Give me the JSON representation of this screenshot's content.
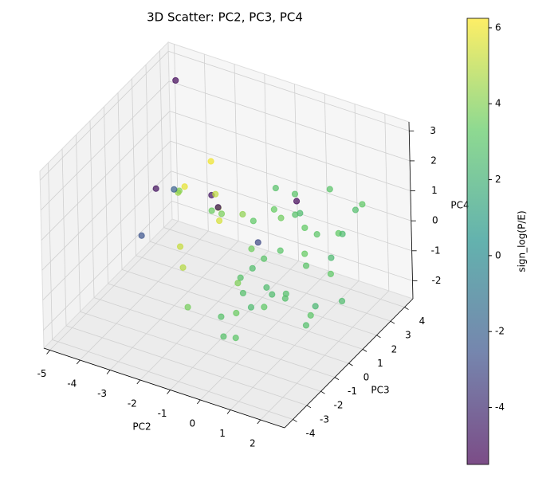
{
  "chart_data": {
    "type": "scatter3d",
    "title": "3D Scatter: PC2, PC3, PC4",
    "xlabel": "PC2",
    "ylabel": "PC3",
    "zlabel": "PC4",
    "colorbar_label": "sign_log(P/E)",
    "colormap": "viridis",
    "alpha": 0.7,
    "xlim": [
      -5.2,
      2.8
    ],
    "ylim": [
      -4.6,
      4.6
    ],
    "zlim": [
      -2.6,
      3.3
    ],
    "xticks": [
      -5,
      -4,
      -3,
      -2,
      -1,
      0,
      1,
      2
    ],
    "yticks": [
      -4,
      -3,
      -2,
      -1,
      0,
      1,
      2,
      3,
      4
    ],
    "zticks": [
      -2,
      -1,
      0,
      1,
      2,
      3
    ],
    "clim": [
      -5.5,
      6.25
    ],
    "cticks": [
      -4,
      -2,
      0,
      2,
      4,
      6
    ],
    "x": [
      0.5,
      1.2,
      -0.3,
      0.9,
      1.8,
      0.1,
      -0.8,
      1.5,
      0.7,
      2.1,
      -1.2,
      0.3,
      1.0,
      -0.5,
      1.6,
      0.2,
      0.8,
      -1.5,
      1.3,
      0.4,
      2.3,
      -0.1,
      0.6,
      1.9,
      -0.9,
      1.1,
      0.0,
      -2.0,
      -2.5,
      -3.0,
      -2.8,
      -3.5,
      -2.2,
      -1.8,
      -3.2,
      -2.6,
      1.4,
      0.9,
      -0.6,
      2.0,
      0.3,
      -1.0,
      1.7,
      0.5,
      -4.6,
      -4.0,
      -3.3,
      -3.8,
      -1.6,
      -1.1,
      -0.4,
      1.0,
      2.4,
      -0.2,
      0.7,
      1.2,
      -1.4,
      0.2,
      1.5,
      -2.3
    ],
    "y": [
      0.2,
      -1.0,
      1.5,
      0.8,
      -0.5,
      -1.8,
      0.9,
      1.6,
      -2.2,
      0.4,
      -0.3,
      2.4,
      -1.5,
      -0.9,
      2.0,
      0.6,
      -0.1,
      1.8,
      -2.5,
      3.0,
      -1.2,
      -2.8,
      1.1,
      2.6,
      0.1,
      -3.2,
      -0.6,
      1.2,
      2.2,
      2.8,
      0.5,
      1.5,
      -1.0,
      -2.0,
      3.2,
      -0.3,
      0.0,
      -1.8,
      2.6,
      1.3,
      -3.5,
      -1.4,
      3.5,
      1.9,
      3.8,
      1.0,
      0.8,
      -0.5,
      0.3,
      2.0,
      3.3,
      0.9,
      0.6,
      -1.6,
      -2.9,
      2.3,
      -2.4,
      -0.4,
      -0.8,
      1.6
    ],
    "z": [
      0.3,
      -0.5,
      0.8,
      1.4,
      -1.1,
      0.2,
      -0.4,
      -0.8,
      0.9,
      0.5,
      1.2,
      -1.3,
      -0.2,
      -1.6,
      0.4,
      2.1,
      -0.9,
      0.1,
      0.6,
      -0.5,
      -0.3,
      -0.7,
      1.8,
      1.0,
      -1.2,
      0.2,
      1.5,
      0.0,
      -0.2,
      0.9,
      1.2,
      0.3,
      -0.6,
      0.7,
      -1.0,
      1.5,
      -1.8,
      1.1,
      -0.1,
      -1.4,
      -0.9,
      2.4,
      0.7,
      -0.6,
      2.6,
      0.5,
      0.8,
      -0.3,
      1.0,
      -0.8,
      0.2,
      0.9,
      1.3,
      -2.0,
      0.4,
      1.6,
      -1.0,
      -1.4,
      2.3,
      0.6
    ],
    "c": [
      3.0,
      2.8,
      3.4,
      2.5,
      3.1,
      2.9,
      3.6,
      3.2,
      2.7,
      2.4,
      3.8,
      3.0,
      2.6,
      3.5,
      3.3,
      2.9,
      2.8,
      4.2,
      2.6,
      3.1,
      2.3,
      2.9,
      3.0,
      2.7,
      3.9,
      2.5,
      3.2,
      5.5,
      4.8,
      6.0,
      5.8,
      4.5,
      4.9,
      5.2,
      3.5,
      4.1,
      2.8,
      3.0,
      3.6,
      2.6,
      2.9,
      -4.8,
      3.2,
      3.4,
      -5.2,
      -5.0,
      -2.0,
      -2.5,
      -4.9,
      -3.0,
      -5.3,
      3.3,
      2.5,
      3.1,
      2.8,
      3.0,
      3.7,
      3.2,
      2.9,
      5.1
    ]
  }
}
